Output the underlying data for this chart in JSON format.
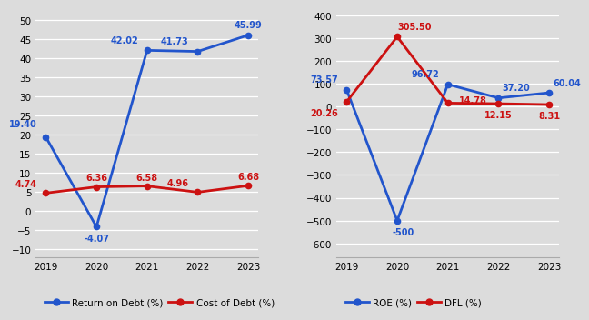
{
  "years": [
    2019,
    2020,
    2021,
    2022,
    2023
  ],
  "return_on_debt": [
    19.4,
    -4.07,
    42.02,
    41.73,
    45.99
  ],
  "cost_of_debt": [
    4.74,
    6.36,
    6.58,
    4.96,
    6.68
  ],
  "roe": [
    73.57,
    -500.0,
    96.72,
    37.2,
    60.04
  ],
  "dfl": [
    20.26,
    305.5,
    14.78,
    12.15,
    8.31
  ],
  "blue_color": "#2255cc",
  "red_color": "#cc1111",
  "bg_color": "#dcdcdc",
  "legend1_labels": [
    "Return on Debt (%)",
    "Cost of Debt (%)"
  ],
  "legend2_labels": [
    "ROE (%)",
    "DFL (%)"
  ],
  "left_yticks": [
    -10,
    -5,
    0,
    5,
    10,
    15,
    20,
    25,
    30,
    35,
    40,
    45,
    50
  ],
  "right_yticks": [
    -600,
    -500,
    -400,
    -300,
    -200,
    -100,
    0,
    100,
    200,
    300,
    400
  ],
  "left_ylim": [
    -12,
    53
  ],
  "right_ylim": [
    -660,
    430
  ],
  "rod_labels": [
    "19.40",
    "-4.07",
    "42.02",
    "41.73",
    "45.99"
  ],
  "cod_labels": [
    "4.74",
    "6.36",
    "6.58",
    "4.96",
    "6.68"
  ],
  "roe_labels": [
    "73.57",
    "-500",
    "96.72",
    "37.20",
    "60.04"
  ],
  "dfl_labels": [
    "20.26",
    "305.50",
    "14.78",
    "12.15",
    "8.31"
  ]
}
